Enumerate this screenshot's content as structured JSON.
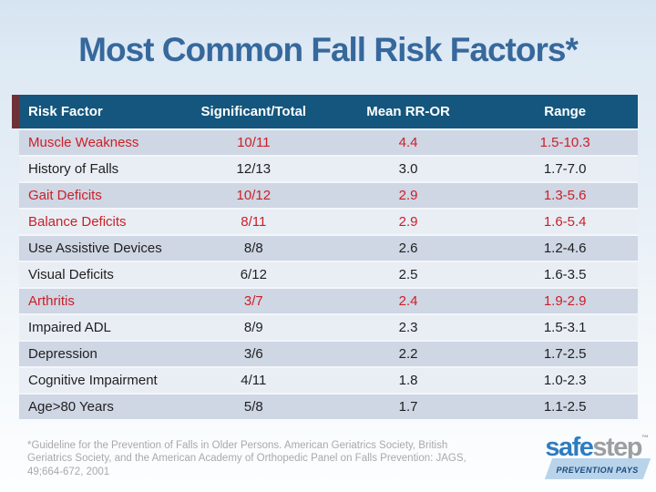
{
  "slide": {
    "title": "Most Common Fall Risk Factors*"
  },
  "table": {
    "columns": [
      "Risk Factor",
      "Significant/Total",
      "Mean RR-OR",
      "Range"
    ],
    "rows": [
      {
        "factor": "Muscle Weakness",
        "significant_total": "10/11",
        "mean_rr_or": "4.4",
        "range": "1.5-10.3",
        "highlighted": true
      },
      {
        "factor": "History of Falls",
        "significant_total": "12/13",
        "mean_rr_or": "3.0",
        "range": "1.7-7.0",
        "highlighted": false
      },
      {
        "factor": "Gait Deficits",
        "significant_total": "10/12",
        "mean_rr_or": "2.9",
        "range": "1.3-5.6",
        "highlighted": true
      },
      {
        "factor": "Balance Deficits",
        "significant_total": "8/11",
        "mean_rr_or": "2.9",
        "range": "1.6-5.4",
        "highlighted": true
      },
      {
        "factor": "Use Assistive Devices",
        "significant_total": "8/8",
        "mean_rr_or": "2.6",
        "range": "1.2-4.6",
        "highlighted": false
      },
      {
        "factor": "Visual Deficits",
        "significant_total": "6/12",
        "mean_rr_or": "2.5",
        "range": "1.6-3.5",
        "highlighted": false
      },
      {
        "factor": "Arthritis",
        "significant_total": "3/7",
        "mean_rr_or": "2.4",
        "range": "1.9-2.9",
        "highlighted": true
      },
      {
        "factor": "Impaired ADL",
        "significant_total": "8/9",
        "mean_rr_or": "2.3",
        "range": "1.5-3.1",
        "highlighted": false
      },
      {
        "factor": "Depression",
        "significant_total": "3/6",
        "mean_rr_or": "2.2",
        "range": "1.7-2.5",
        "highlighted": false
      },
      {
        "factor": "Cognitive Impairment",
        "significant_total": "4/11",
        "mean_rr_or": "1.8",
        "range": "1.0-2.3",
        "highlighted": false
      },
      {
        "factor": "Age>80 Years",
        "significant_total": "5/8",
        "mean_rr_or": "1.7",
        "range": "1.1-2.5",
        "highlighted": false
      }
    ]
  },
  "footnote": {
    "lines": [
      "*Guideline for the Prevention of Falls in Older Persons.  American Geriatrics Society, British",
      "Geriatrics Society, and the American Academy of Orthopedic Panel on Falls Prevention:  JAGS,",
      "49;664-672, 2001"
    ]
  },
  "logo": {
    "word_part1": "safe",
    "word_part2": "step",
    "trademark": "™",
    "tagline": "PREVENTION PAYS"
  },
  "colors": {
    "title_blue": "#36689c",
    "header_bg": "#14567d",
    "header_text": "#ffffff",
    "row_band_dark": "#cfd6e4",
    "row_band_light": "#e9eef5",
    "highlight_red": "#cb2027",
    "accent_maroon": "#6d3137",
    "logo_blue": "#2e7cc0",
    "logo_gray": "#9c9ea1",
    "banner_bg": "#b9d4ea",
    "banner_text": "#1c4a7e",
    "footnote_gray": "#a9a9a9"
  }
}
